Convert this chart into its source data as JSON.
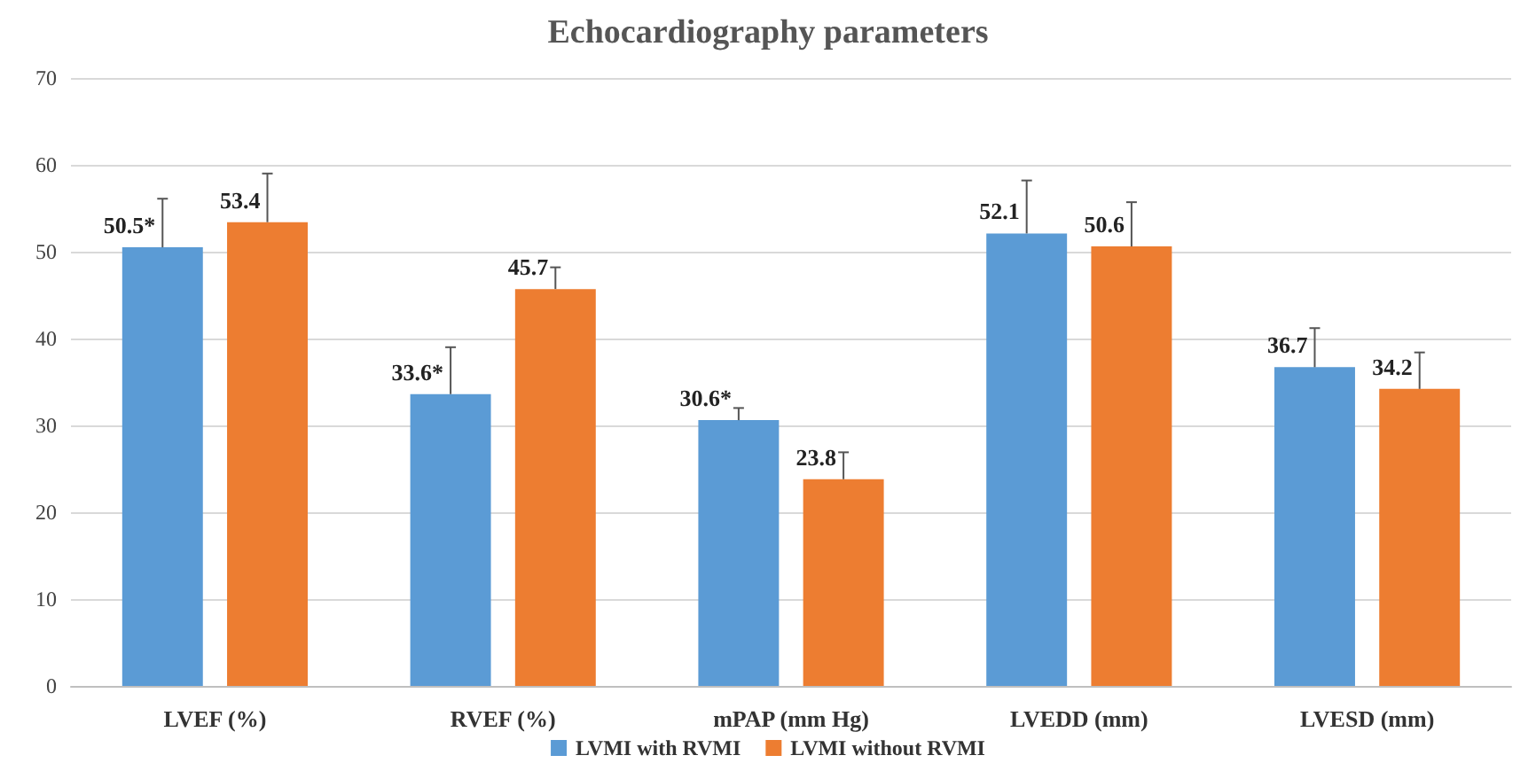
{
  "chart_data": {
    "type": "bar",
    "title": "Echocardiography parameters",
    "categories": [
      "LVEF (%)",
      "RVEF (%)",
      "mPAP (mm Hg)",
      "LVEDD (mm)",
      "LVESD (mm)"
    ],
    "series": [
      {
        "name": "LVMI with RVMI",
        "color": "#5b9bd5",
        "values": [
          50.5,
          33.6,
          30.6,
          52.1,
          36.7
        ],
        "value_labels": [
          "50.5*",
          "33.6*",
          "30.6*",
          "52.1",
          "36.7"
        ],
        "errors": [
          [
            50.5,
            56.1
          ],
          [
            33.6,
            39
          ],
          [
            30.6,
            32
          ],
          [
            52.1,
            58.2
          ],
          [
            36.7,
            41.2
          ]
        ]
      },
      {
        "name": "LVMI without RVMI",
        "color": "#ed7d31",
        "values": [
          53.4,
          45.7,
          23.8,
          50.6,
          34.2
        ],
        "value_labels": [
          "53.4",
          "45.7",
          "23.8",
          "50.6",
          "34.2"
        ],
        "errors": [
          [
            53.4,
            59
          ],
          [
            45.7,
            48.2
          ],
          [
            23.8,
            26.9
          ],
          [
            50.6,
            55.7
          ],
          [
            34.2,
            38.4
          ]
        ]
      }
    ],
    "ylim": [
      0,
      70
    ],
    "yticks": [
      0,
      10,
      20,
      30,
      40,
      50,
      60,
      70
    ],
    "grid": "y",
    "legend": "bottom"
  }
}
